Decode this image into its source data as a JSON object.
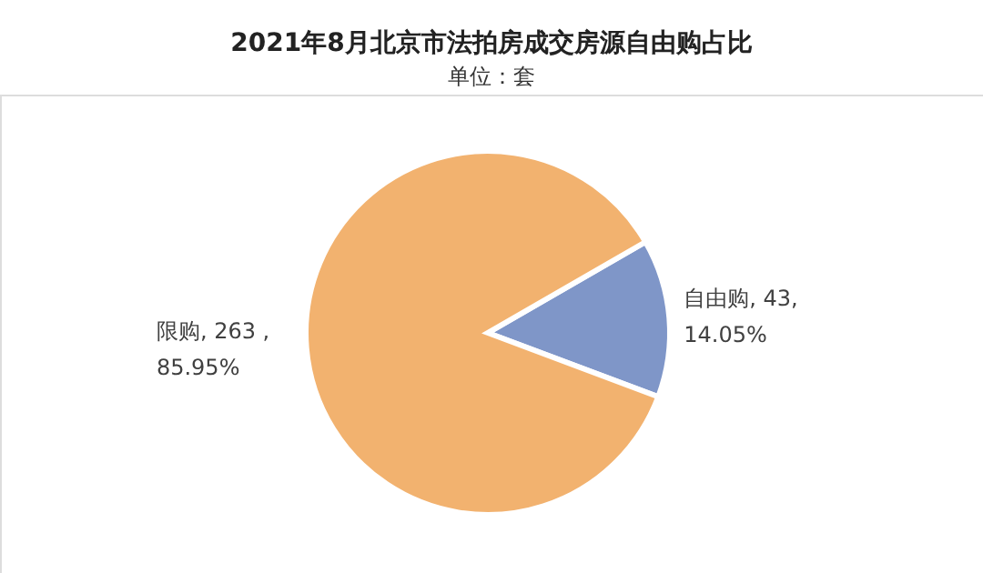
{
  "chart_data": {
    "type": "pie",
    "title": "2021年8月北京市法拍房成交房源自由购占比",
    "subtitle": "单位：套",
    "categories": [
      "自由购",
      "限购"
    ],
    "values": [
      14.05,
      85.95
    ],
    "colors": [
      "#7f96c8",
      "#f2b26f"
    ],
    "value_labels": [
      ", 43, 14.05%",
      ", 263 , 85.95%"
    ]
  }
}
